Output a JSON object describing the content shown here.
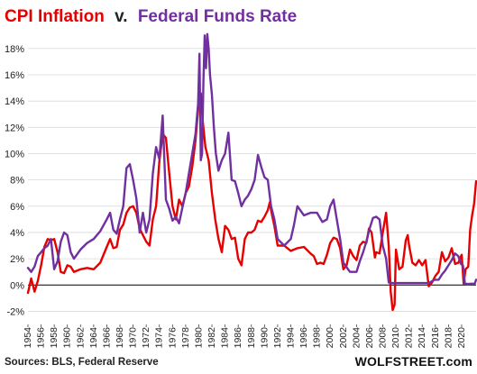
{
  "chart_data": {
    "type": "line",
    "title_parts": [
      "CPI Inflation",
      "v.",
      "Federal Funds Rate"
    ],
    "title_colors": [
      "#e60000",
      "#222222",
      "#7030a0"
    ],
    "source": "Sources: BLS, Federal Reserve",
    "brand": "WOLFSTREET.com",
    "ylim": [
      -3,
      19.5
    ],
    "xlim": [
      1954,
      2022.2
    ],
    "y_ticks": [
      -2,
      0,
      2,
      4,
      6,
      8,
      10,
      12,
      14,
      16,
      18
    ],
    "y_tick_labels": [
      "-2%",
      "0%",
      "2%",
      "4%",
      "6%",
      "8%",
      "10%",
      "12%",
      "14%",
      "16%",
      "18%"
    ],
    "x_tick_labels": [
      "1954",
      "1956",
      "1958",
      "1960",
      "1962",
      "1964",
      "1966",
      "1968",
      "1970",
      "1972",
      "1974",
      "1976",
      "1978",
      "1980",
      "1982",
      "1984",
      "1986",
      "1988",
      "1990",
      "1992",
      "1994",
      "1996",
      "1998",
      "2000",
      "2002",
      "2004",
      "2006",
      "2008",
      "2010",
      "2012",
      "2014",
      "2016",
      "2018",
      "2020"
    ],
    "series": [
      {
        "color": "#e60000",
        "x": [
          1954.0,
          1954.5,
          1955.0,
          1955.5,
          1956.0,
          1956.5,
          1957.0,
          1957.5,
          1958.0,
          1958.5,
          1959.0,
          1959.5,
          1960.0,
          1960.5,
          1961.0,
          1962.0,
          1963.0,
          1964.0,
          1965.0,
          1966.0,
          1966.5,
          1967.0,
          1967.5,
          1968.0,
          1968.5,
          1969.0,
          1969.5,
          1970.0,
          1970.5,
          1971.0,
          1971.5,
          1972.0,
          1972.5,
          1973.0,
          1973.5,
          1974.0,
          1974.5,
          1975.0,
          1975.5,
          1976.0,
          1976.5,
          1977.0,
          1977.5,
          1978.0,
          1978.5,
          1979.0,
          1979.5,
          1980.0,
          1980.3,
          1980.6,
          1981.0,
          1981.5,
          1982.0,
          1982.5,
          1983.0,
          1983.5,
          1984.0,
          1984.5,
          1985.0,
          1985.5,
          1986.0,
          1986.5,
          1987.0,
          1987.5,
          1988.0,
          1988.5,
          1989.0,
          1989.5,
          1990.0,
          1990.5,
          1990.8,
          1991.0,
          1991.5,
          1992.0,
          1993.0,
          1994.0,
          1995.0,
          1996.0,
          1997.0,
          1997.5,
          1998.0,
          1998.5,
          1999.0,
          1999.5,
          2000.0,
          2000.5,
          2001.0,
          2001.5,
          2002.0,
          2002.5,
          2003.0,
          2003.5,
          2004.0,
          2004.5,
          2005.0,
          2005.5,
          2005.9,
          2006.3,
          2006.8,
          2007.0,
          2007.5,
          2008.0,
          2008.5,
          2008.9,
          2009.2,
          2009.5,
          2009.8,
          2010.0,
          2010.5,
          2011.0,
          2011.5,
          2011.8,
          2012.0,
          2012.5,
          2013.0,
          2013.5,
          2014.0,
          2014.5,
          2015.0,
          2015.5,
          2016.0,
          2016.5,
          2017.0,
          2017.5,
          2018.0,
          2018.5,
          2019.0,
          2019.5,
          2020.0,
          2020.3,
          2020.6,
          2021.0,
          2021.3,
          2021.6,
          2021.9,
          2022.2
        ],
        "values": [
          -0.6,
          0.5,
          -0.5,
          0.3,
          1.5,
          2.9,
          3.5,
          3.4,
          3.5,
          2.5,
          1.0,
          0.9,
          1.5,
          1.4,
          1.0,
          1.2,
          1.3,
          1.2,
          1.7,
          2.9,
          3.5,
          2.8,
          2.9,
          4.2,
          4.6,
          5.5,
          5.9,
          6.0,
          5.5,
          4.3,
          3.8,
          3.3,
          3.0,
          5.0,
          6.0,
          9.4,
          11.5,
          11.2,
          8.5,
          6.0,
          5.0,
          6.5,
          6.0,
          7.0,
          7.5,
          9.0,
          11.0,
          14.0,
          14.6,
          12.5,
          10.5,
          9.5,
          7.0,
          5.0,
          3.5,
          2.5,
          4.5,
          4.2,
          3.5,
          3.6,
          2.0,
          1.5,
          3.5,
          4.0,
          4.0,
          4.2,
          4.9,
          4.8,
          5.2,
          5.7,
          6.3,
          5.7,
          4.5,
          3.0,
          3.0,
          2.6,
          2.8,
          2.9,
          2.4,
          2.2,
          1.6,
          1.7,
          1.6,
          2.3,
          3.2,
          3.6,
          3.5,
          2.8,
          1.2,
          1.5,
          2.7,
          2.2,
          1.9,
          3.0,
          3.3,
          3.2,
          4.3,
          4.0,
          2.1,
          2.5,
          2.4,
          4.0,
          5.5,
          3.0,
          -0.5,
          -1.9,
          -1.5,
          2.7,
          1.2,
          1.4,
          3.4,
          3.8,
          3.0,
          1.7,
          1.5,
          1.9,
          1.5,
          1.9,
          -0.1,
          0.2,
          0.7,
          1.0,
          2.5,
          1.8,
          2.1,
          2.8,
          1.6,
          1.7,
          2.3,
          0.1,
          1.2,
          1.4,
          4.2,
          5.3,
          6.2,
          7.9
        ],
        "name": ""
      },
      {
        "color": "#7030a0",
        "x": [
          1954.0,
          1954.5,
          1955.0,
          1955.5,
          1956.0,
          1956.5,
          1957.0,
          1957.5,
          1958.0,
          1958.5,
          1959.0,
          1959.5,
          1960.0,
          1960.5,
          1961.0,
          1962.0,
          1963.0,
          1964.0,
          1965.0,
          1966.0,
          1966.5,
          1967.0,
          1967.5,
          1968.0,
          1968.5,
          1969.0,
          1969.5,
          1970.0,
          1970.5,
          1971.0,
          1971.5,
          1972.0,
          1972.5,
          1973.0,
          1973.5,
          1974.0,
          1974.5,
          1975.0,
          1975.5,
          1976.0,
          1976.5,
          1977.0,
          1977.5,
          1978.0,
          1978.5,
          1979.0,
          1979.5,
          1979.9,
          1980.1,
          1980.3,
          1980.5,
          1980.7,
          1980.9,
          1981.1,
          1981.3,
          1981.5,
          1981.7,
          1982.0,
          1982.3,
          1982.6,
          1983.0,
          1983.5,
          1984.0,
          1984.5,
          1985.0,
          1985.5,
          1986.0,
          1986.5,
          1987.0,
          1987.5,
          1988.0,
          1988.5,
          1989.0,
          1989.5,
          1990.0,
          1990.5,
          1991.0,
          1991.5,
          1992.0,
          1993.0,
          1994.0,
          1994.5,
          1995.0,
          1996.0,
          1997.0,
          1998.0,
          1998.8,
          1999.5,
          2000.0,
          2000.5,
          2001.0,
          2001.5,
          2002.0,
          2003.0,
          2004.0,
          2004.5,
          2005.0,
          2005.5,
          2006.0,
          2006.5,
          2007.0,
          2007.5,
          2008.0,
          2008.5,
          2008.9,
          2009.5,
          2012.0,
          2015.0,
          2015.9,
          2016.5,
          2017.0,
          2017.5,
          2018.0,
          2018.5,
          2019.0,
          2019.5,
          2019.9,
          2020.2,
          2020.5,
          2021.0,
          2021.5,
          2022.0,
          2022.2
        ],
        "values": [
          1.3,
          1.0,
          1.4,
          2.2,
          2.5,
          2.8,
          3.0,
          3.5,
          1.2,
          1.8,
          3.3,
          4.0,
          3.8,
          2.5,
          2.0,
          2.7,
          3.2,
          3.5,
          4.1,
          5.0,
          5.5,
          4.2,
          3.9,
          5.0,
          6.0,
          8.9,
          9.2,
          8.0,
          6.6,
          4.0,
          5.5,
          4.0,
          5.0,
          8.5,
          10.5,
          9.6,
          12.9,
          6.5,
          5.8,
          4.9,
          5.2,
          4.7,
          5.9,
          7.0,
          8.5,
          10.0,
          11.5,
          13.8,
          17.6,
          9.5,
          10.0,
          15.5,
          19.0,
          16.5,
          19.1,
          18.0,
          16.0,
          14.5,
          12.0,
          10.0,
          8.7,
          9.5,
          10.0,
          11.6,
          8.0,
          7.9,
          7.0,
          6.0,
          6.5,
          6.8,
          7.3,
          8.0,
          9.9,
          9.0,
          8.2,
          8.0,
          6.0,
          5.0,
          3.5,
          3.0,
          3.5,
          4.6,
          6.0,
          5.3,
          5.5,
          5.5,
          4.8,
          5.0,
          6.0,
          6.5,
          5.0,
          3.5,
          1.7,
          1.0,
          1.0,
          1.8,
          2.5,
          3.3,
          4.3,
          5.1,
          5.2,
          5.0,
          3.0,
          2.0,
          0.2,
          0.15,
          0.15,
          0.15,
          0.4,
          0.4,
          0.8,
          1.1,
          1.5,
          1.9,
          2.4,
          2.2,
          1.6,
          1.5,
          0.1,
          0.08,
          0.1,
          0.1,
          0.4
        ],
        "name": ""
      }
    ]
  }
}
